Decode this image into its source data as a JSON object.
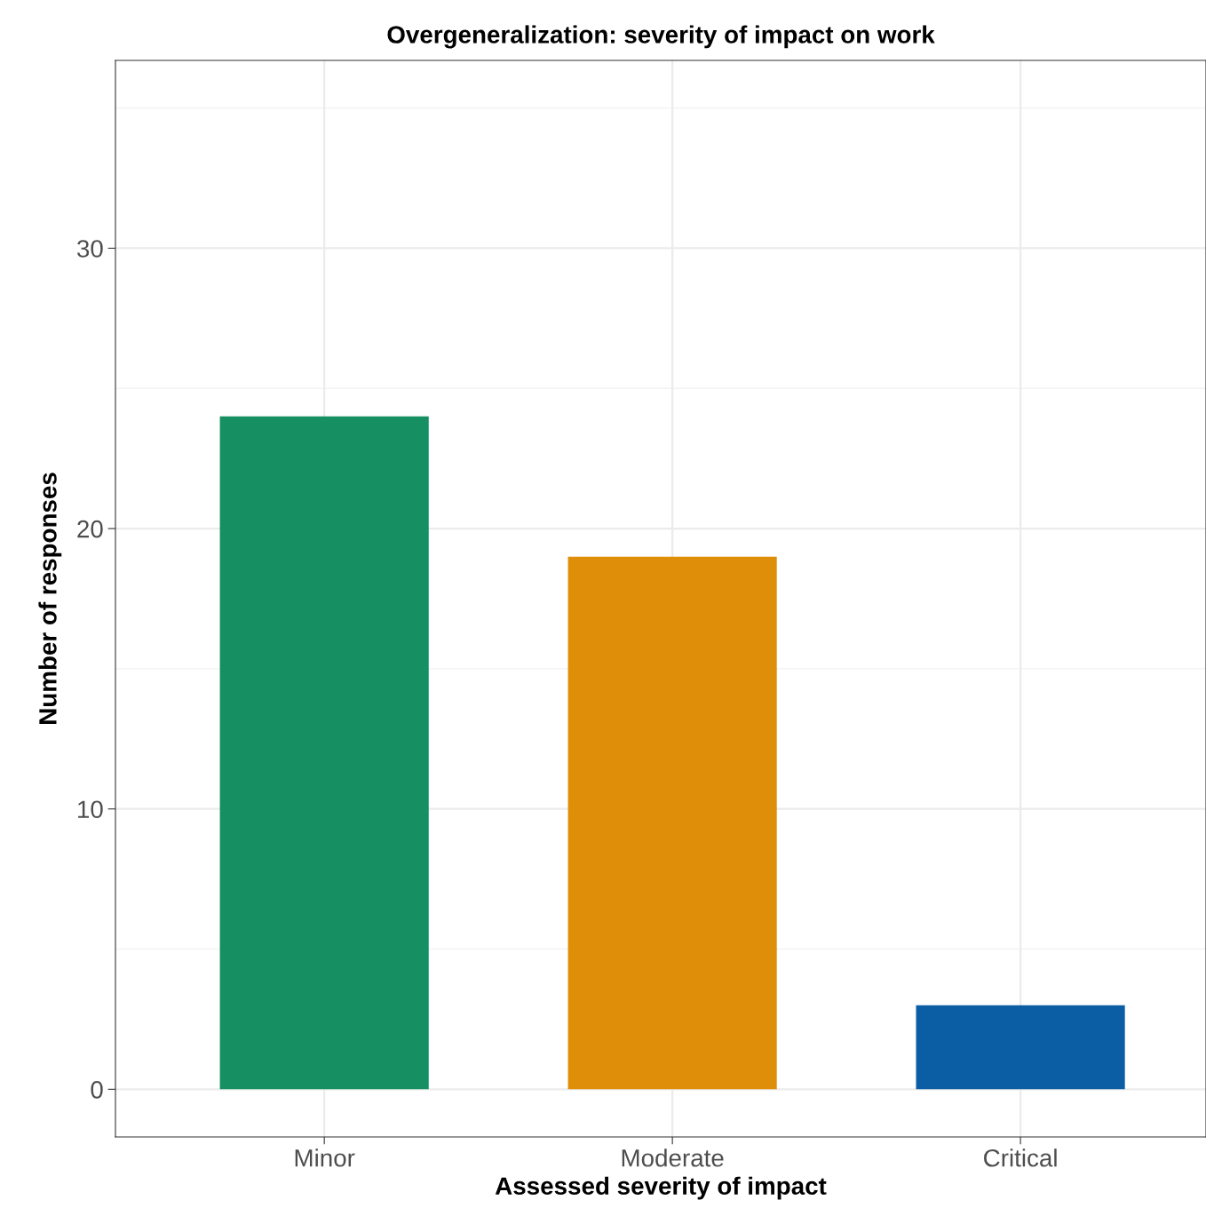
{
  "chart_data": {
    "type": "bar",
    "title": "Overgeneralization: severity of impact on work",
    "xlabel": "Assessed severity of impact",
    "ylabel": "Number of responses",
    "categories": [
      "Minor",
      "Moderate",
      "Critical"
    ],
    "values": [
      24,
      19,
      3
    ],
    "colors": [
      "#168f62",
      "#df8e0a",
      "#0b5ea4"
    ],
    "ylim": [
      -1.7,
      36.7
    ],
    "yticks": [
      0,
      10,
      20,
      30
    ],
    "grid": true
  }
}
